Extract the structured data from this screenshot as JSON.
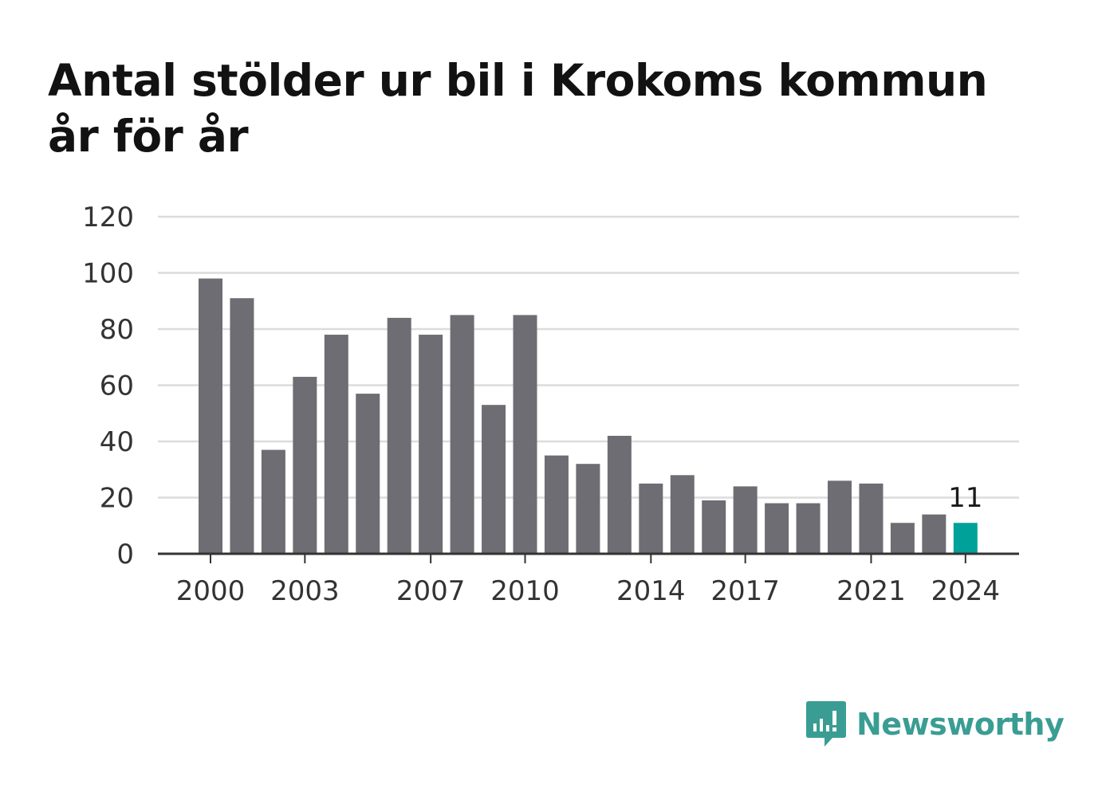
{
  "chart_data": {
    "type": "bar",
    "title": "Antal stölder ur bil i Krokoms kommun år för år",
    "x": [
      2000,
      2001,
      2002,
      2003,
      2004,
      2005,
      2006,
      2007,
      2008,
      2009,
      2010,
      2011,
      2012,
      2013,
      2014,
      2015,
      2016,
      2017,
      2018,
      2019,
      2020,
      2021,
      2022,
      2023,
      2024
    ],
    "values": [
      98,
      91,
      37,
      63,
      78,
      57,
      84,
      78,
      85,
      53,
      85,
      35,
      32,
      42,
      25,
      28,
      19,
      24,
      18,
      18,
      26,
      25,
      11,
      14,
      11
    ],
    "x_tick_labels": [
      "2000",
      "2003",
      "2007",
      "2010",
      "2014",
      "2017",
      "2021",
      "2024"
    ],
    "y_ticks": [
      0,
      20,
      40,
      60,
      80,
      100,
      120
    ],
    "ylim": [
      0,
      120
    ],
    "highlight": {
      "year": 2024,
      "label": "11"
    },
    "grid": true,
    "colors": {
      "bar": "#6e6d73",
      "highlight": "#00a199",
      "grid": "#dcdcdc",
      "axis": "#333333"
    }
  },
  "branding": {
    "name": "Newsworthy",
    "color": "#3a9d93"
  }
}
